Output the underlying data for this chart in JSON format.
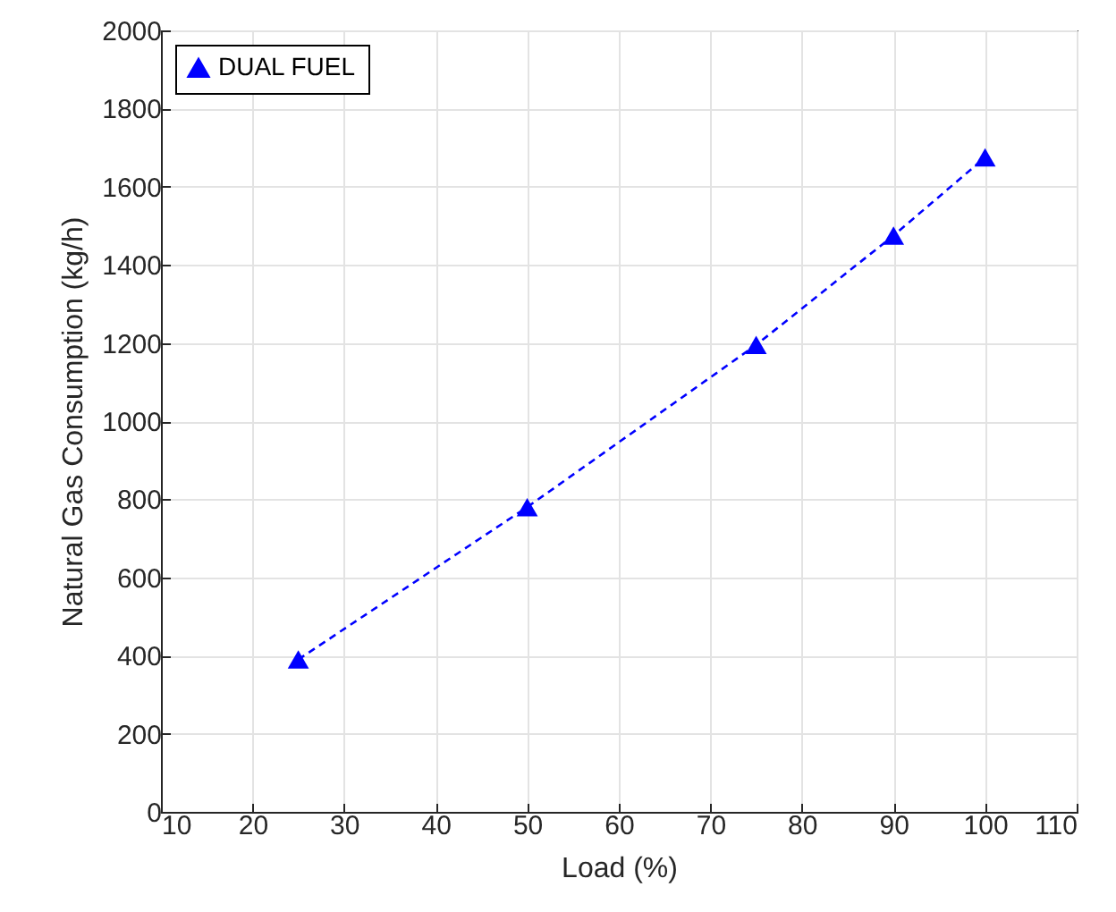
{
  "chart_data": {
    "type": "line",
    "xlabel": "Load (%)",
    "ylabel": "Natural Gas Consumption (kg/h)",
    "x": [
      25,
      50,
      75,
      90,
      100
    ],
    "series": [
      {
        "name": "DUAL FUEL",
        "color": "#0000ff",
        "values": [
          390,
          780,
          1195,
          1475,
          1675
        ]
      }
    ],
    "xlim": [
      10,
      110
    ],
    "xticks": [
      10,
      20,
      30,
      40,
      50,
      60,
      70,
      80,
      90,
      100,
      110
    ],
    "ylim": [
      0,
      2000
    ],
    "yticks": [
      0,
      200,
      400,
      600,
      800,
      1000,
      1200,
      1400,
      1600,
      1800,
      2000
    ],
    "grid": true,
    "legend": "top left",
    "marker": "triangle",
    "line_style": "dashed"
  }
}
